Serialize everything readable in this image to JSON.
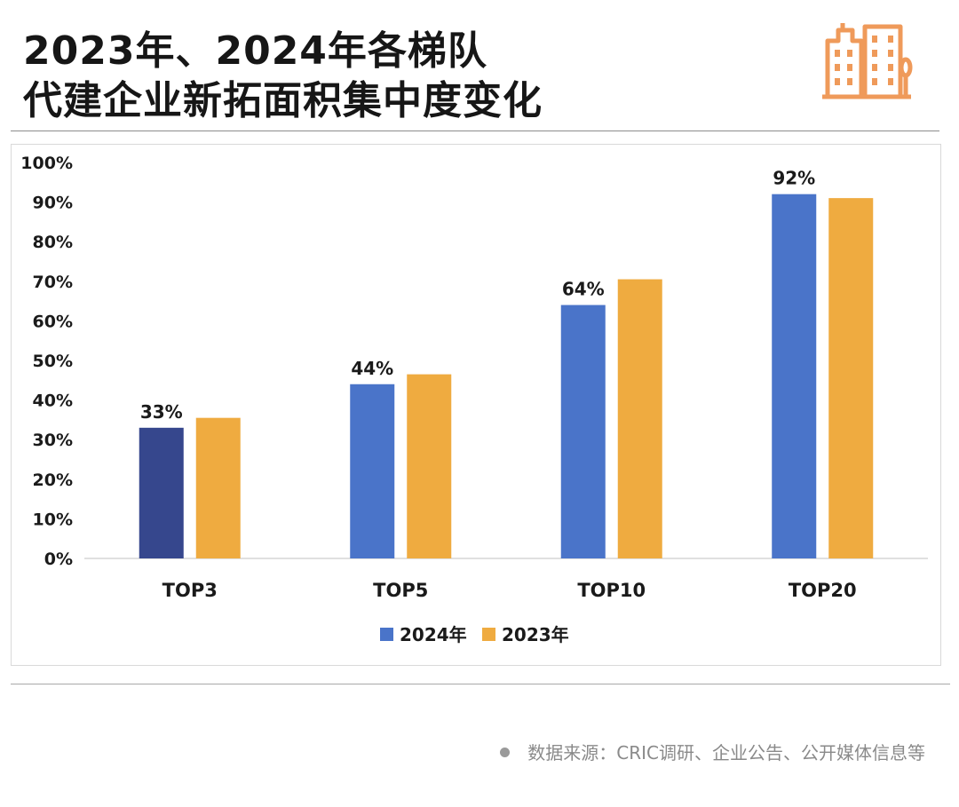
{
  "title": {
    "line1": "2023年、2024年各梯队",
    "line2": "代建企业新拓面积集中度变化"
  },
  "logo_icon": "city-buildings-icon",
  "source": {
    "icon": "bullet-dot-icon",
    "text": "数据来源：CRIC调研、企业公告、公开媒体信息等"
  },
  "colors": {
    "series_2024": "#4a74c9",
    "series_2024_top3": "#36478d",
    "series_2023": "#efab40",
    "accent": "#ef9a5a"
  },
  "chart_data": {
    "type": "bar",
    "categories": [
      "TOP3",
      "TOP5",
      "TOP10",
      "TOP20"
    ],
    "series": [
      {
        "name": "2024年",
        "values": [
          33,
          44,
          64,
          92
        ]
      },
      {
        "name": "2023年",
        "values": [
          35.5,
          46.5,
          70.5,
          91
        ]
      }
    ],
    "data_labels": [
      "33%",
      "44%",
      "64%",
      "92%"
    ],
    "ylim": [
      0,
      100
    ],
    "yticks": [
      "0%",
      "10%",
      "20%",
      "30%",
      "40%",
      "50%",
      "60%",
      "70%",
      "80%",
      "90%",
      "100%"
    ],
    "title": "",
    "xlabel": "",
    "ylabel": "",
    "grid": false,
    "legend_position": "bottom"
  }
}
